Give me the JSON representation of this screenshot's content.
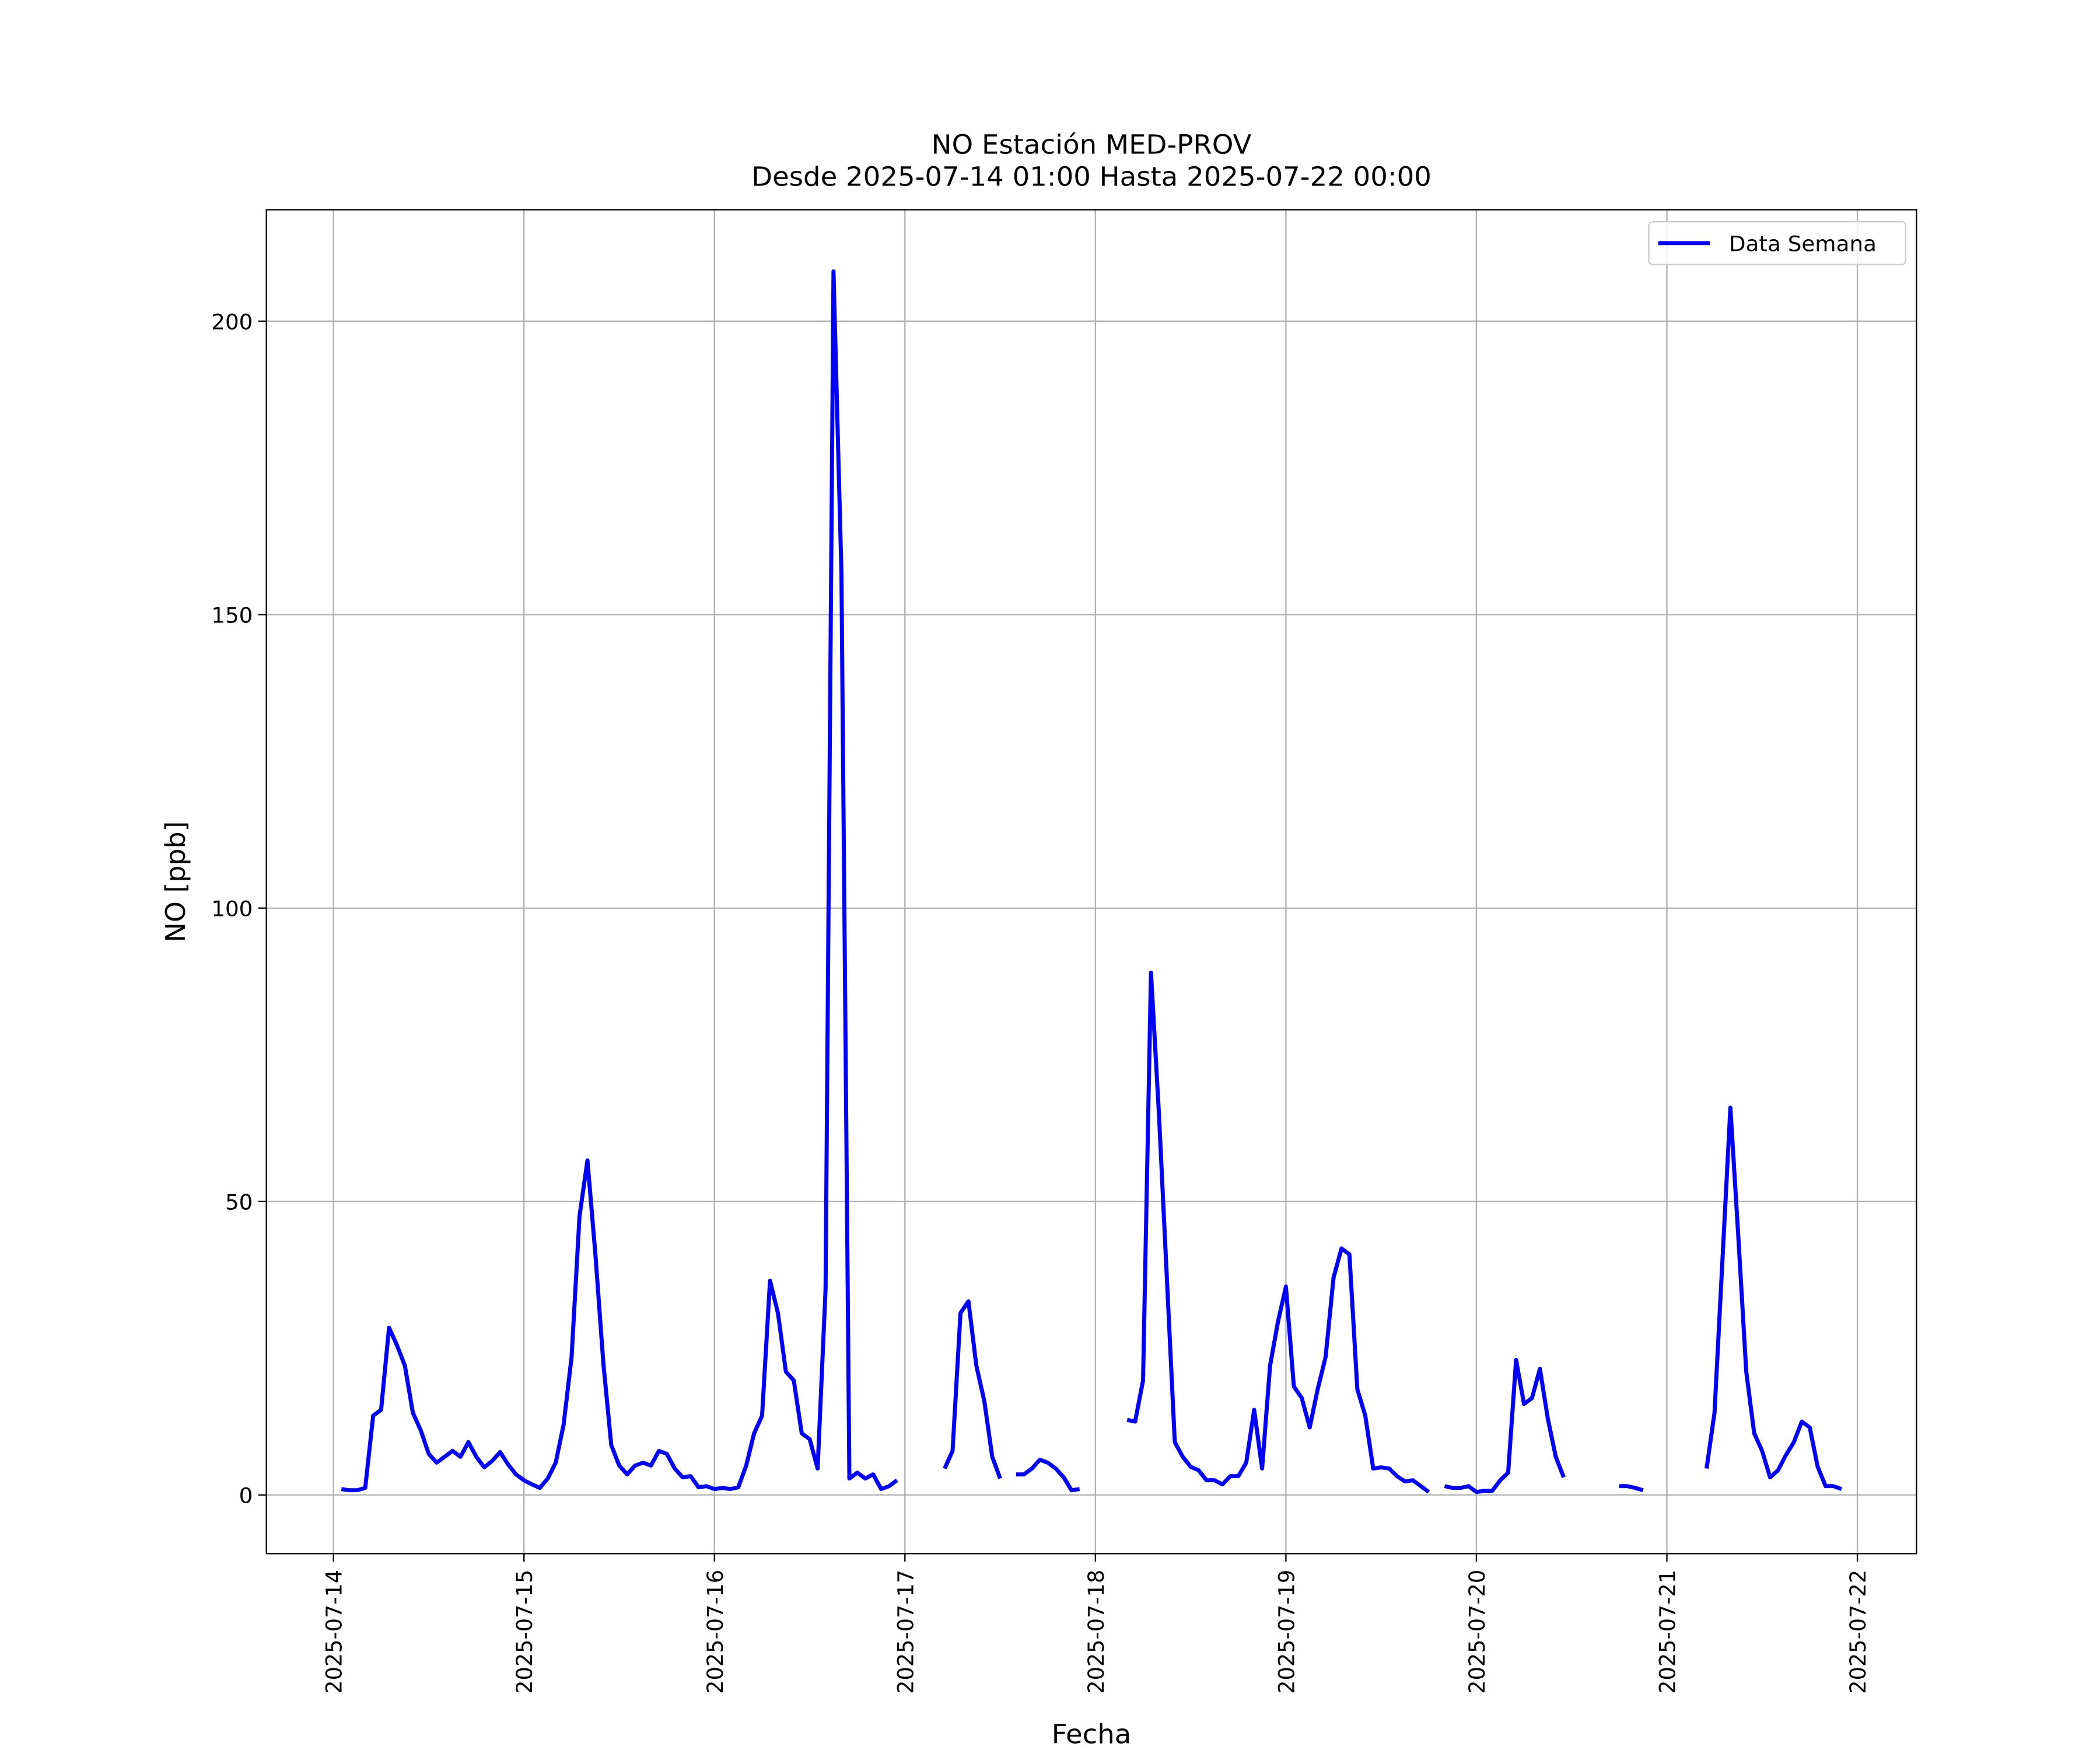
{
  "chart_data": {
    "type": "line",
    "title": "NO Estación MED-PROV",
    "subtitle": "Desde 2025-07-14 01:00 Hasta 2025-07-22 00:00",
    "x_label": "Fecha",
    "y_label": "NO [ppb]",
    "x": [
      "2025-07-14 01:00",
      "2025-07-14 02:00",
      "2025-07-14 03:00",
      "2025-07-14 04:00",
      "2025-07-14 05:00",
      "2025-07-14 06:00",
      "2025-07-14 07:00",
      "2025-07-14 08:00",
      "2025-07-14 09:00",
      "2025-07-14 10:00",
      "2025-07-14 11:00",
      "2025-07-14 12:00",
      "2025-07-14 13:00",
      "2025-07-14 14:00",
      "2025-07-14 15:00",
      "2025-07-14 16:00",
      "2025-07-14 17:00",
      "2025-07-14 18:00",
      "2025-07-14 19:00",
      "2025-07-14 20:00",
      "2025-07-14 21:00",
      "2025-07-14 22:00",
      "2025-07-14 23:00",
      "2025-07-15 00:00",
      "2025-07-15 01:00",
      "2025-07-15 02:00",
      "2025-07-15 03:00",
      "2025-07-15 04:00",
      "2025-07-15 05:00",
      "2025-07-15 06:00",
      "2025-07-15 07:00",
      "2025-07-15 08:00",
      "2025-07-15 09:00",
      "2025-07-15 10:00",
      "2025-07-15 11:00",
      "2025-07-15 12:00",
      "2025-07-15 13:00",
      "2025-07-15 14:00",
      "2025-07-15 15:00",
      "2025-07-15 16:00",
      "2025-07-15 17:00",
      "2025-07-15 18:00",
      "2025-07-15 19:00",
      "2025-07-15 20:00",
      "2025-07-15 21:00",
      "2025-07-15 22:00",
      "2025-07-15 23:00",
      "2025-07-16 00:00",
      "2025-07-16 01:00",
      "2025-07-16 02:00",
      "2025-07-16 03:00",
      "2025-07-16 04:00",
      "2025-07-16 05:00",
      "2025-07-16 06:00",
      "2025-07-16 07:00",
      "2025-07-16 08:00",
      "2025-07-16 09:00",
      "2025-07-16 10:00",
      "2025-07-16 11:00",
      "2025-07-16 12:00",
      "2025-07-16 13:00",
      "2025-07-16 14:00",
      "2025-07-16 15:00",
      "2025-07-16 16:00",
      "2025-07-16 17:00",
      "2025-07-16 18:00",
      "2025-07-16 19:00",
      "2025-07-16 20:00",
      "2025-07-16 21:00",
      "2025-07-16 22:00",
      "2025-07-16 23:00",
      "2025-07-17 00:00",
      "2025-07-17 01:00",
      "2025-07-17 02:00",
      "2025-07-17 03:00",
      "2025-07-17 04:00",
      "2025-07-17 05:00",
      "2025-07-17 06:00",
      "2025-07-17 07:00",
      "2025-07-17 08:00",
      "2025-07-17 09:00",
      "2025-07-17 10:00",
      "2025-07-17 11:00",
      "2025-07-17 12:00",
      "2025-07-17 13:00",
      "2025-07-17 14:00",
      "2025-07-17 15:00",
      "2025-07-17 16:00",
      "2025-07-17 17:00",
      "2025-07-17 18:00",
      "2025-07-17 19:00",
      "2025-07-17 20:00",
      "2025-07-17 21:00",
      "2025-07-17 22:00",
      "2025-07-17 23:00",
      "2025-07-18 00:00",
      "2025-07-18 01:00",
      "2025-07-18 02:00",
      "2025-07-18 03:00",
      "2025-07-18 04:00",
      "2025-07-18 05:00",
      "2025-07-18 06:00",
      "2025-07-18 07:00",
      "2025-07-18 08:00",
      "2025-07-18 09:00",
      "2025-07-18 10:00",
      "2025-07-18 11:00",
      "2025-07-18 12:00",
      "2025-07-18 13:00",
      "2025-07-18 14:00",
      "2025-07-18 15:00",
      "2025-07-18 16:00",
      "2025-07-18 17:00",
      "2025-07-18 18:00",
      "2025-07-18 19:00",
      "2025-07-18 20:00",
      "2025-07-18 21:00",
      "2025-07-18 22:00",
      "2025-07-18 23:00",
      "2025-07-19 00:00",
      "2025-07-19 01:00",
      "2025-07-19 02:00",
      "2025-07-19 03:00",
      "2025-07-19 04:00",
      "2025-07-19 05:00",
      "2025-07-19 06:00",
      "2025-07-19 07:00",
      "2025-07-19 08:00",
      "2025-07-19 09:00",
      "2025-07-19 10:00",
      "2025-07-19 11:00",
      "2025-07-19 12:00",
      "2025-07-19 13:00",
      "2025-07-19 14:00",
      "2025-07-19 15:00",
      "2025-07-19 16:00",
      "2025-07-19 17:00",
      "2025-07-19 18:00",
      "2025-07-19 19:00",
      "2025-07-19 20:00",
      "2025-07-19 21:00",
      "2025-07-19 22:00",
      "2025-07-19 23:00",
      "2025-07-20 00:00",
      "2025-07-20 01:00",
      "2025-07-20 02:00",
      "2025-07-20 03:00",
      "2025-07-20 04:00",
      "2025-07-20 05:00",
      "2025-07-20 06:00",
      "2025-07-20 07:00",
      "2025-07-20 08:00",
      "2025-07-20 09:00",
      "2025-07-20 10:00",
      "2025-07-20 11:00",
      "2025-07-20 12:00",
      "2025-07-20 13:00",
      "2025-07-20 14:00",
      "2025-07-20 15:00",
      "2025-07-20 16:00",
      "2025-07-20 17:00",
      "2025-07-20 18:00",
      "2025-07-20 19:00",
      "2025-07-20 20:00",
      "2025-07-20 21:00",
      "2025-07-20 22:00",
      "2025-07-20 23:00",
      "2025-07-21 00:00",
      "2025-07-21 01:00",
      "2025-07-21 02:00",
      "2025-07-21 03:00",
      "2025-07-21 04:00",
      "2025-07-21 05:00",
      "2025-07-21 06:00",
      "2025-07-21 07:00",
      "2025-07-21 08:00",
      "2025-07-21 09:00",
      "2025-07-21 10:00",
      "2025-07-21 11:00",
      "2025-07-21 12:00",
      "2025-07-21 13:00",
      "2025-07-21 14:00",
      "2025-07-21 15:00",
      "2025-07-21 16:00",
      "2025-07-21 17:00",
      "2025-07-21 18:00",
      "2025-07-21 19:00",
      "2025-07-21 20:00",
      "2025-07-21 21:00",
      "2025-07-21 22:00",
      "2025-07-21 23:00",
      "2025-07-22 00:00"
    ],
    "series": [
      {
        "name": "Data Semana",
        "color": "#0000ff",
        "values": [
          1.0,
          0.8,
          0.8,
          1.2,
          13.5,
          14.5,
          28.5,
          25.5,
          22,
          14,
          11,
          7,
          5.5,
          6.5,
          7.5,
          6.5,
          9,
          6.5,
          4.7,
          5.8,
          7.3,
          5.2,
          3.5,
          2.5,
          1.8,
          1.2,
          2.8,
          5.5,
          12,
          23.5,
          47.5,
          57,
          41,
          22.5,
          8.5,
          5,
          3.5,
          5,
          5.5,
          5,
          7.5,
          7,
          4.5,
          3,
          3.2,
          1.3,
          1.5,
          1,
          1.2,
          1.0,
          1.3,
          5,
          10.5,
          13.5,
          36.5,
          31,
          21,
          19.5,
          10.5,
          9.5,
          4.5,
          35,
          208.5,
          157,
          2.8,
          3.8,
          2.8,
          3.5,
          1,
          1.5,
          2.5,
          null,
          null,
          null,
          null,
          null,
          4.5,
          7.5,
          31,
          33,
          22,
          16,
          6.5,
          2.8,
          null,
          3.5,
          3.5,
          4.5,
          6,
          5.5,
          4.5,
          3,
          0.8,
          1,
          null,
          null,
          null,
          null,
          null,
          12.8,
          12.5,
          19.5,
          89,
          65,
          37,
          9,
          6.5,
          4.8,
          4.2,
          2.5,
          2.5,
          1.8,
          3.2,
          3.2,
          5.5,
          14.5,
          4.5,
          22,
          29.5,
          35.5,
          18.5,
          16.5,
          11.5,
          18,
          23.5,
          37,
          42,
          41,
          18,
          13.5,
          4.5,
          4.7,
          4.5,
          3.2,
          2.3,
          2.5,
          1.5,
          0.5,
          null,
          1.5,
          1.2,
          1.2,
          1.5,
          0.5,
          0.7,
          0.7,
          2.5,
          3.8,
          23,
          15.5,
          16.5,
          21.5,
          13,
          6.5,
          3,
          null,
          null,
          null,
          null,
          null,
          null,
          1.5,
          1.5,
          1.2,
          0.8,
          null,
          null,
          null,
          null,
          null,
          null,
          null,
          4.5,
          14,
          40,
          66,
          44,
          21,
          10.5,
          7.5,
          3,
          4.2,
          6.8,
          9,
          12.5,
          11.5,
          4.8,
          1.5,
          1.5,
          1,
          null,
          null
        ]
      }
    ],
    "xlim": [
      "2025-07-13 15:33",
      "2025-07-22 07:27"
    ],
    "xticks": [
      "2025-07-14",
      "2025-07-15",
      "2025-07-16",
      "2025-07-17",
      "2025-07-18",
      "2025-07-19",
      "2025-07-20",
      "2025-07-21",
      "2025-07-22"
    ],
    "ylim": [
      -10,
      219
    ],
    "yticks": [
      0,
      50,
      100,
      150,
      200
    ],
    "grid": true,
    "legend": "upper right"
  }
}
